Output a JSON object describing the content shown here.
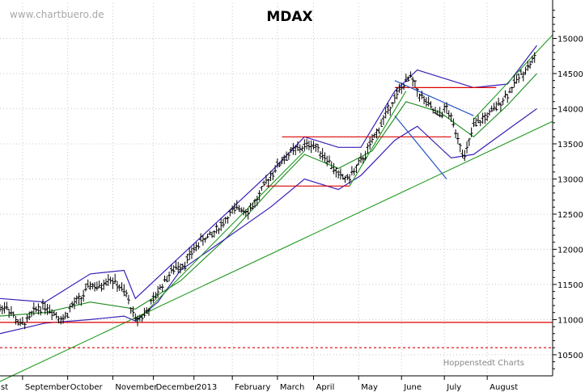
{
  "watermark": "www.chartbuero.de",
  "source": "Hoppenstedt Charts",
  "colors": {
    "price": "#000000",
    "bands": "#3a1fb8",
    "moving_average": "#1a8a1a",
    "trend_green": "#1f9a1f",
    "support_red": "#dd0000",
    "downtrend_blue": "#2855c8",
    "grid": "#c8c8c8"
  },
  "chart_data": {
    "type": "line",
    "style": "ohlc-bars",
    "title": "MDAX",
    "ylim": [
      10200,
      15500
    ],
    "yaxis_position": "right",
    "grid": true,
    "yticks": [
      10500,
      11000,
      11500,
      12000,
      12500,
      13000,
      13500,
      14000,
      14500,
      15000
    ],
    "ytick_labels": [
      "10500",
      "11000",
      "11500",
      "12000",
      "12500",
      "13000",
      "13500",
      "14000",
      "14500",
      "15000"
    ],
    "xticks": [
      "st",
      "September",
      "October",
      "November",
      "December",
      "2013",
      "February",
      "March",
      "April",
      "May",
      "June",
      "July",
      "August"
    ],
    "series": [
      {
        "role": "price",
        "style": "ohlc",
        "points": [
          [
            0,
            11150
          ],
          [
            3,
            11200
          ],
          [
            6,
            11050
          ],
          [
            9,
            10920
          ],
          [
            12,
            10980
          ],
          [
            16,
            11150
          ],
          [
            20,
            11200
          ],
          [
            24,
            11100
          ],
          [
            28,
            11000
          ],
          [
            32,
            11200
          ],
          [
            36,
            11300
          ],
          [
            40,
            11500
          ],
          [
            44,
            11450
          ],
          [
            48,
            11600
          ],
          [
            52,
            11500
          ],
          [
            56,
            11350
          ],
          [
            60,
            11000
          ],
          [
            63,
            11050
          ],
          [
            66,
            11150
          ],
          [
            70,
            11400
          ],
          [
            74,
            11600
          ],
          [
            78,
            11750
          ],
          [
            82,
            11800
          ],
          [
            86,
            12000
          ],
          [
            90,
            12150
          ],
          [
            94,
            12200
          ],
          [
            98,
            12350
          ],
          [
            102,
            12500
          ],
          [
            106,
            12600
          ],
          [
            110,
            12550
          ],
          [
            114,
            12700
          ],
          [
            118,
            12950
          ],
          [
            122,
            13150
          ],
          [
            126,
            13300
          ],
          [
            130,
            13400
          ],
          [
            134,
            13450
          ],
          [
            138,
            13500
          ],
          [
            142,
            13400
          ],
          [
            146,
            13250
          ],
          [
            150,
            13050
          ],
          [
            154,
            13000
          ],
          [
            158,
            13150
          ],
          [
            162,
            13350
          ],
          [
            166,
            13600
          ],
          [
            170,
            13850
          ],
          [
            174,
            14100
          ],
          [
            178,
            14300
          ],
          [
            182,
            14450
          ],
          [
            186,
            14200
          ],
          [
            190,
            14050
          ],
          [
            194,
            13900
          ],
          [
            198,
            14000
          ],
          [
            202,
            13700
          ],
          [
            206,
            13300
          ],
          [
            210,
            13750
          ],
          [
            214,
            13850
          ],
          [
            218,
            13950
          ],
          [
            222,
            14100
          ],
          [
            226,
            14250
          ],
          [
            230,
            14450
          ],
          [
            234,
            14600
          ],
          [
            238,
            14750
          ]
        ]
      },
      {
        "role": "moving-average",
        "points": [
          [
            0,
            11050
          ],
          [
            20,
            11100
          ],
          [
            40,
            11250
          ],
          [
            60,
            11150
          ],
          [
            80,
            11550
          ],
          [
            100,
            12150
          ],
          [
            120,
            12850
          ],
          [
            135,
            13350
          ],
          [
            150,
            13150
          ],
          [
            165,
            13400
          ],
          [
            180,
            14100
          ],
          [
            195,
            13950
          ],
          [
            210,
            13600
          ],
          [
            225,
            14050
          ],
          [
            238,
            14500
          ]
        ]
      },
      {
        "role": "upper-band",
        "points": [
          [
            0,
            11300
          ],
          [
            20,
            11250
          ],
          [
            40,
            11650
          ],
          [
            55,
            11700
          ],
          [
            60,
            11300
          ],
          [
            80,
            11900
          ],
          [
            100,
            12500
          ],
          [
            120,
            13100
          ],
          [
            135,
            13600
          ],
          [
            150,
            13450
          ],
          [
            160,
            13450
          ],
          [
            175,
            14250
          ],
          [
            185,
            14550
          ],
          [
            200,
            14400
          ],
          [
            210,
            14300
          ],
          [
            225,
            14350
          ],
          [
            238,
            14900
          ]
        ]
      },
      {
        "role": "lower-band",
        "points": [
          [
            0,
            10800
          ],
          [
            20,
            10950
          ],
          [
            40,
            11000
          ],
          [
            55,
            11050
          ],
          [
            60,
            10980
          ],
          [
            70,
            11250
          ],
          [
            80,
            11700
          ],
          [
            100,
            12150
          ],
          [
            120,
            12600
          ],
          [
            135,
            13000
          ],
          [
            150,
            12850
          ],
          [
            160,
            13050
          ],
          [
            175,
            13550
          ],
          [
            185,
            13750
          ],
          [
            200,
            13300
          ],
          [
            210,
            13350
          ],
          [
            225,
            13700
          ],
          [
            238,
            14000
          ]
        ]
      },
      {
        "role": "trendline",
        "points": [
          [
            0,
            10120
          ],
          [
            245,
            13820
          ]
        ]
      },
      {
        "role": "trendline",
        "points": [
          [
            60,
            10960
          ],
          [
            135,
            13400
          ]
        ]
      },
      {
        "role": "trendline",
        "points": [
          [
            155,
            12900
          ],
          [
            180,
            14250
          ]
        ]
      },
      {
        "role": "trendline",
        "points": [
          [
            210,
            13850
          ],
          [
            245,
            15050
          ]
        ]
      },
      {
        "role": "support",
        "points": [
          [
            0,
            10960
          ],
          [
            245,
            10960
          ]
        ]
      },
      {
        "role": "support",
        "style": "dashed",
        "points": [
          [
            0,
            10600
          ],
          [
            245,
            10600
          ]
        ]
      },
      {
        "role": "resistance",
        "points": [
          [
            118,
            12900
          ],
          [
            155,
            12900
          ]
        ]
      },
      {
        "role": "resistance",
        "points": [
          [
            125,
            13600
          ],
          [
            200,
            13600
          ]
        ]
      },
      {
        "role": "resistance",
        "points": [
          [
            175,
            14300
          ],
          [
            220,
            14300
          ]
        ]
      },
      {
        "role": "downtrend",
        "points": [
          [
            175,
            14400
          ],
          [
            210,
            13900
          ]
        ]
      },
      {
        "role": "downtrend",
        "points": [
          [
            175,
            13900
          ],
          [
            198,
            13000
          ]
        ]
      }
    ],
    "annotations": [
      {
        "type": "hline",
        "value": 10960,
        "color": "red",
        "style": "solid"
      },
      {
        "type": "hline",
        "value": 10600,
        "color": "red",
        "style": "dashed"
      }
    ]
  }
}
